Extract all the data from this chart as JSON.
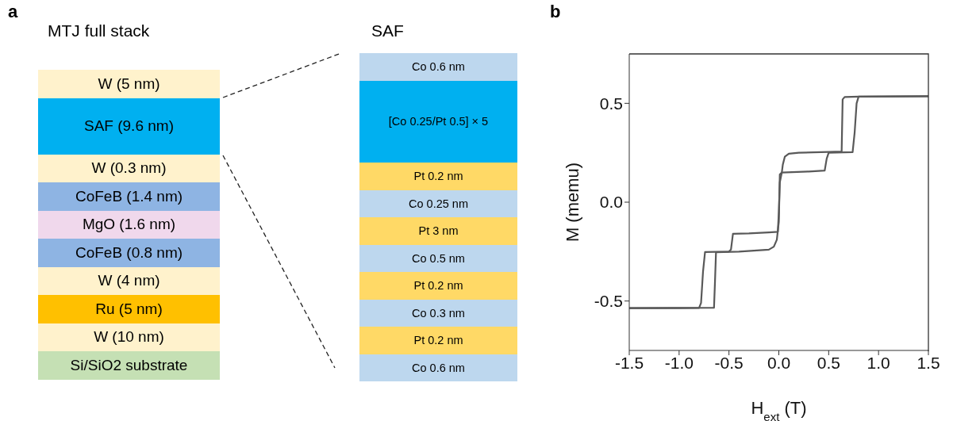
{
  "chart_data": [
    {
      "type": "other",
      "title": "MTJ full stack",
      "annotations": [
        "a"
      ],
      "categories": [
        "W (5 nm)",
        "SAF (9.6 nm)",
        "W (0.3 nm)",
        "CoFeB (1.4 nm)",
        "MgO (1.6 nm)",
        "CoFeB (0.8 nm)",
        "W (4 nm)",
        "Ru (5 nm)",
        "W (10 nm)",
        "Si/SiO2 substrate"
      ],
      "colors": [
        "#fff2cc",
        "#00b0f0",
        "#fff2cc",
        "#8eb4e3",
        "#f0d8ec",
        "#8eb4e3",
        "#fff2cc",
        "#ffc000",
        "#fff2cc",
        "#c5e0b4"
      ]
    },
    {
      "type": "other",
      "title": "SAF",
      "categories": [
        "Co 0.6 nm",
        "[Co 0.25/Pt 0.5] × 5",
        "Pt 0.2 nm",
        "Co 0.25 nm",
        "Pt 3 nm",
        "Co 0.5 nm",
        "Pt 0.2 nm",
        "Co 0.3 nm",
        "Pt 0.2 nm",
        "Co 0.6 nm"
      ],
      "colors": [
        "#bdd7ee",
        "#00b0f0",
        "#ffd966",
        "#bdd7ee",
        "#ffd966",
        "#bdd7ee",
        "#ffd966",
        "#bdd7ee",
        "#ffd966",
        "#bdd7ee"
      ]
    },
    {
      "type": "line",
      "annotations": [
        "b"
      ],
      "xlabel": "H$_{ext}$ (T)",
      "ylabel": "M (memu)",
      "xlim": [
        -1.5,
        1.5
      ],
      "xticks": [
        -1.5,
        {
          "value": -1,
          "label": "-1.0"
        },
        -0.5,
        {
          "value": 0,
          "label": "0.0"
        },
        0.5,
        {
          "value": 1,
          "label": "1.0"
        },
        1.5
      ],
      "ylim": [
        -0.75,
        0.75
      ],
      "yticks": [
        -0.5,
        {
          "value": 0,
          "label": "0.0"
        },
        0.5
      ],
      "marker": "none",
      "line_style": "solid",
      "series": [
        {
          "color": "#595959",
          "x": [
            1.5,
            0.8,
            0.66,
            0.64,
            0.63,
            0.5,
            0.2,
            0.1,
            0.06,
            0.04,
            0.03,
            0.01,
            0.0,
            -0.01,
            -0.1,
            -0.3,
            -0.46,
            -0.48,
            -0.5,
            -0.74,
            -0.76,
            -0.78,
            -0.8,
            -1.0,
            -1.5
          ],
          "values": [
            0.536,
            0.534,
            0.532,
            0.52,
            0.256,
            0.254,
            0.25,
            0.245,
            0.23,
            0.19,
            0.15,
            0.1,
            -0.05,
            -0.15,
            -0.153,
            -0.158,
            -0.16,
            -0.24,
            -0.25,
            -0.252,
            -0.35,
            -0.51,
            -0.535,
            -0.536,
            -0.536
          ]
        },
        {
          "color": "#595959",
          "x": [
            -1.5,
            -0.65,
            -0.64,
            -0.63,
            -0.4,
            -0.1,
            -0.05,
            -0.02,
            0.0,
            0.01,
            0.03,
            0.3,
            0.46,
            0.48,
            0.5,
            0.74,
            0.76,
            0.78,
            0.8,
            1.5
          ],
          "values": [
            -0.536,
            -0.534,
            -0.4,
            -0.253,
            -0.25,
            -0.24,
            -0.225,
            -0.19,
            -0.1,
            0.14,
            0.15,
            0.155,
            0.16,
            0.22,
            0.25,
            0.253,
            0.35,
            0.5,
            0.534,
            0.536
          ]
        }
      ]
    }
  ]
}
